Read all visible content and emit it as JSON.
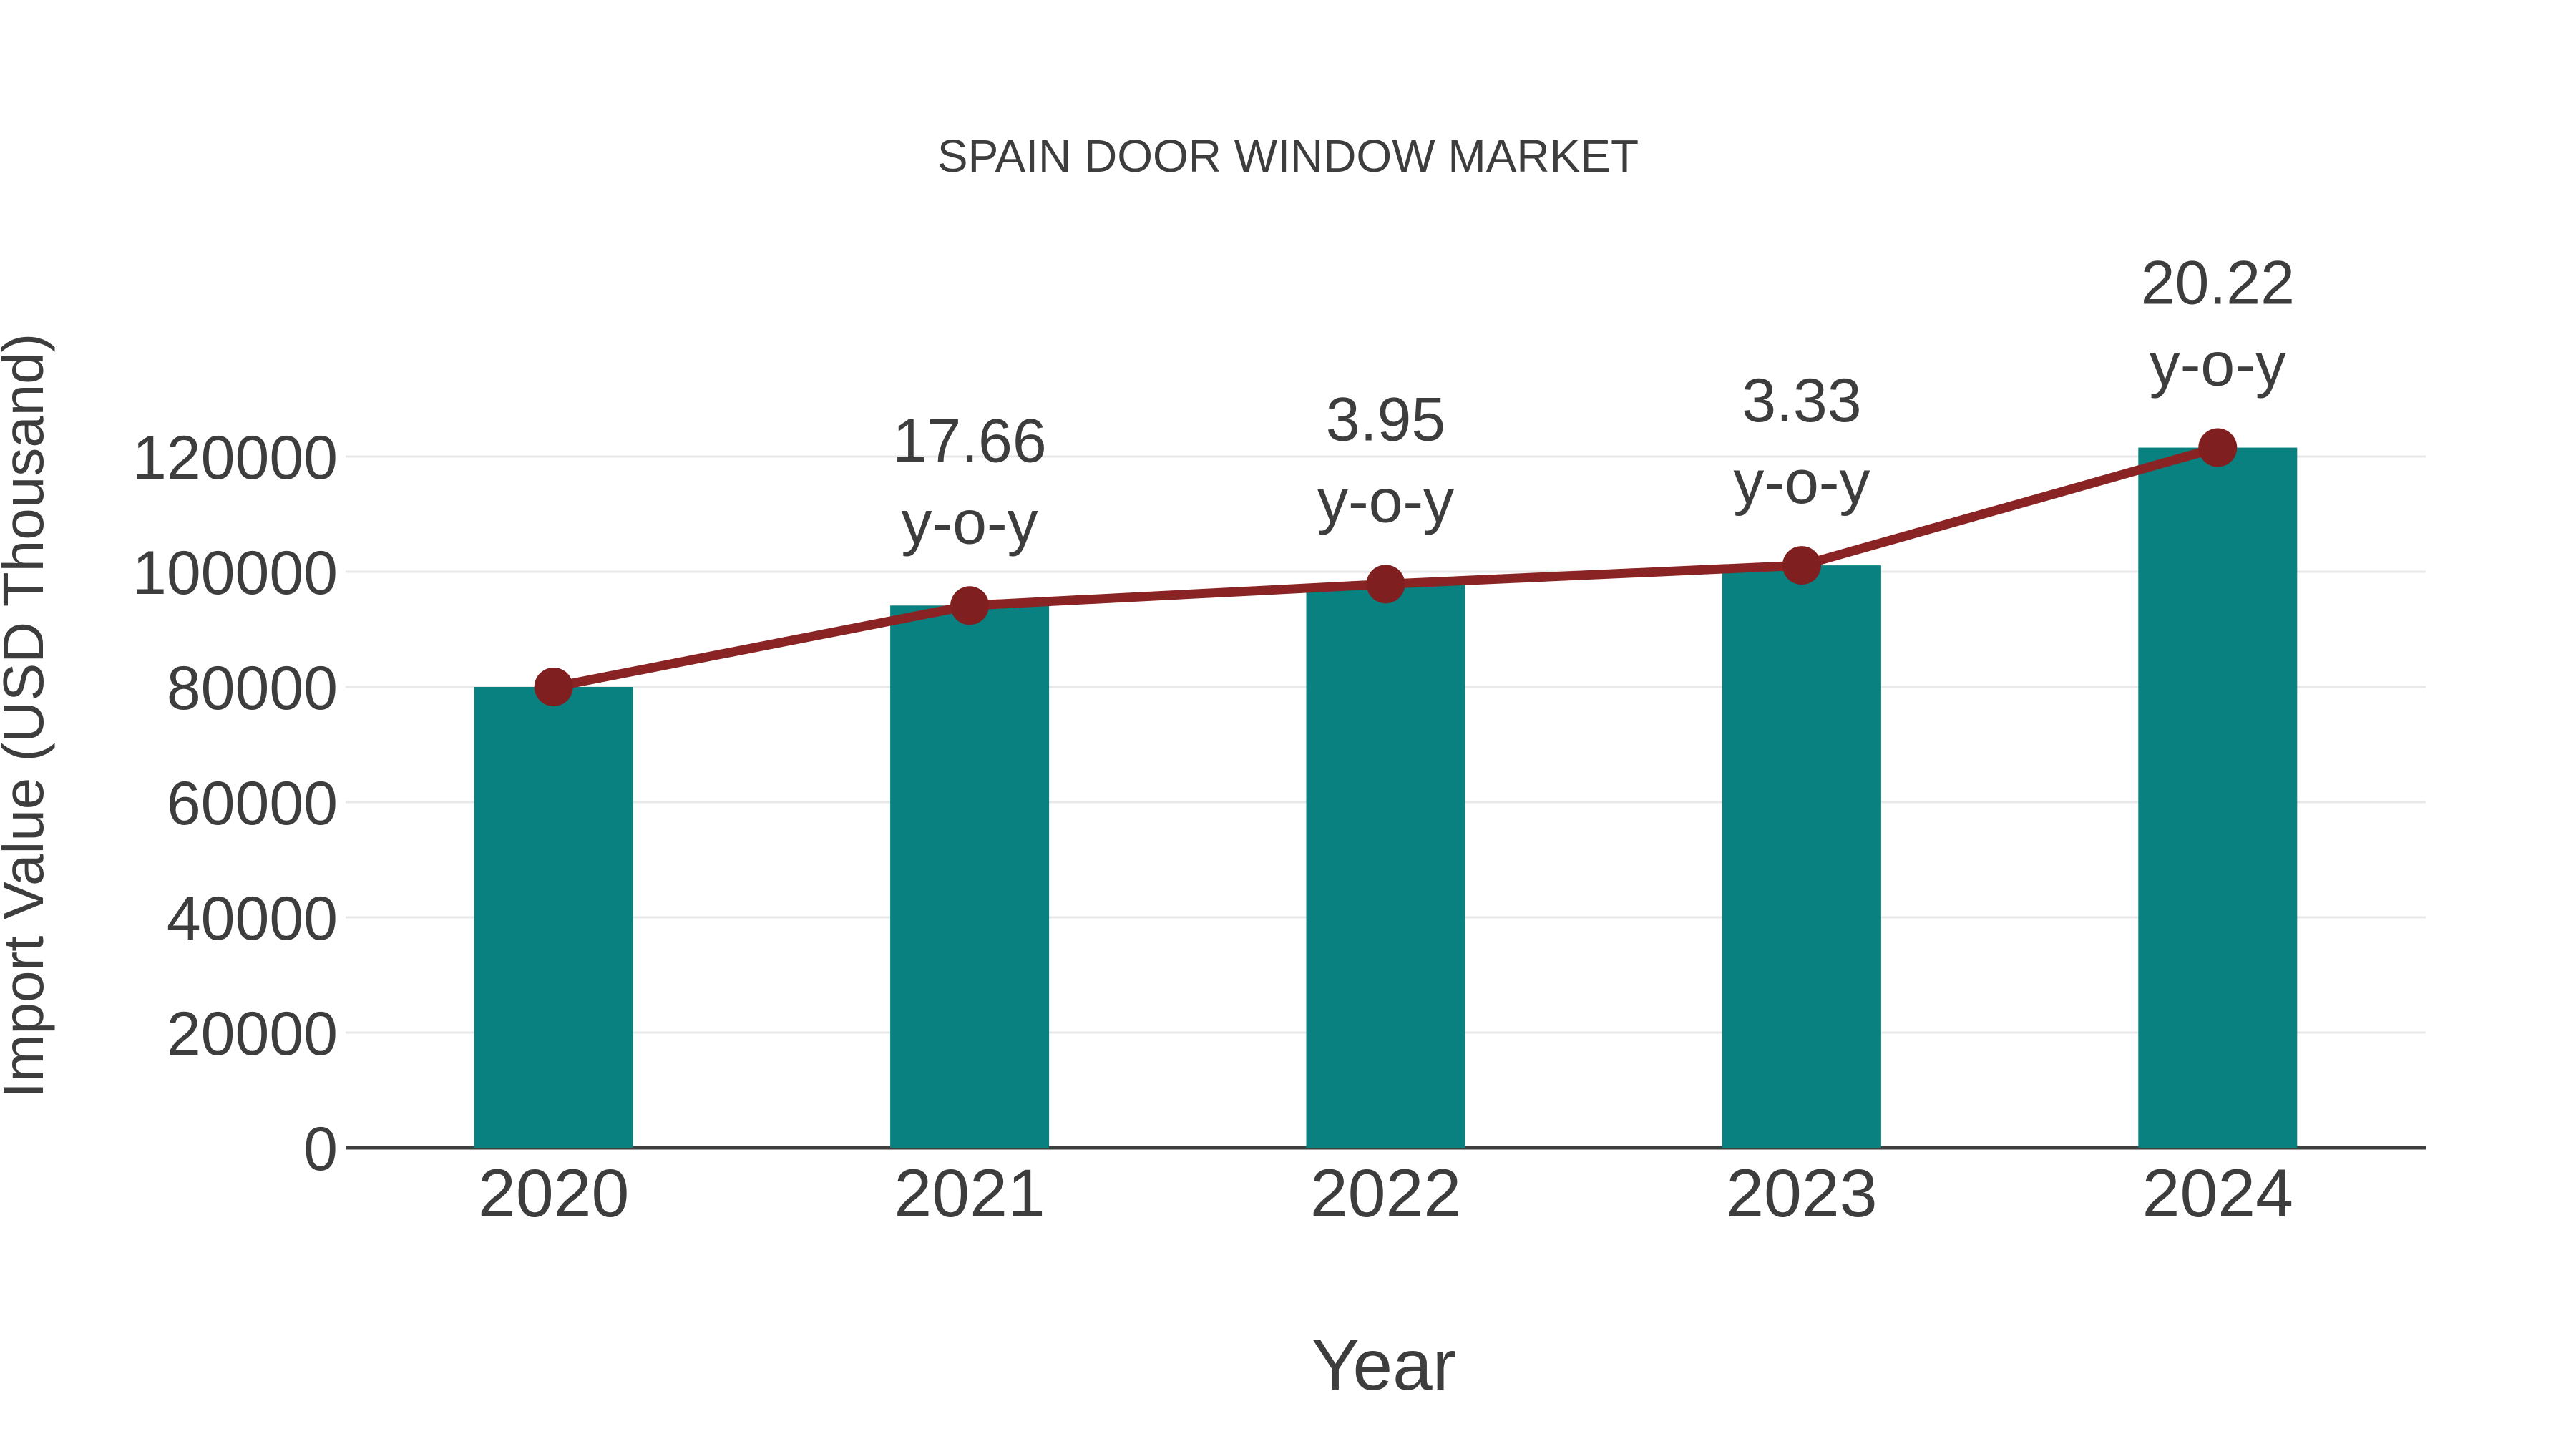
{
  "title": "SPAIN DOOR WINDOW MARKET",
  "xlabel": "Year",
  "ylabel": "Import Value (USD Thousand)",
  "colors": {
    "bar": "#0a8181",
    "line": "#8a2323",
    "marker": "#801f1f",
    "grid": "#e8e8e8",
    "axis": "#3f3f3f",
    "text": "#3d3d3d",
    "background": "#ffffff"
  },
  "chart_data": {
    "type": "bar+line",
    "title": "SPAIN DOOR WINDOW MARKET",
    "xlabel": "Year",
    "ylabel": "Import Value (USD Thousand)",
    "categories": [
      "2020",
      "2021",
      "2022",
      "2023",
      "2024"
    ],
    "series": [
      {
        "name": "Import Value (USD Thousand)",
        "type": "bar",
        "values": [
          80000,
          94128,
          97846,
          101104,
          121547
        ]
      },
      {
        "name": "Import Value trend",
        "type": "line",
        "values": [
          80000,
          94128,
          97846,
          101104,
          121547
        ]
      }
    ],
    "annotations": [
      {
        "category": "2021",
        "value": "17.66",
        "suffix": "y-o-y"
      },
      {
        "category": "2022",
        "value": "3.95",
        "suffix": "y-o-y"
      },
      {
        "category": "2023",
        "value": "3.33",
        "suffix": "y-o-y"
      },
      {
        "category": "2024",
        "value": "20.22",
        "suffix": "y-o-y"
      }
    ],
    "yticks": [
      0,
      20000,
      40000,
      60000,
      80000,
      100000,
      120000
    ],
    "ylim": [
      0,
      130000
    ],
    "grid": true,
    "legend_position": "none"
  }
}
